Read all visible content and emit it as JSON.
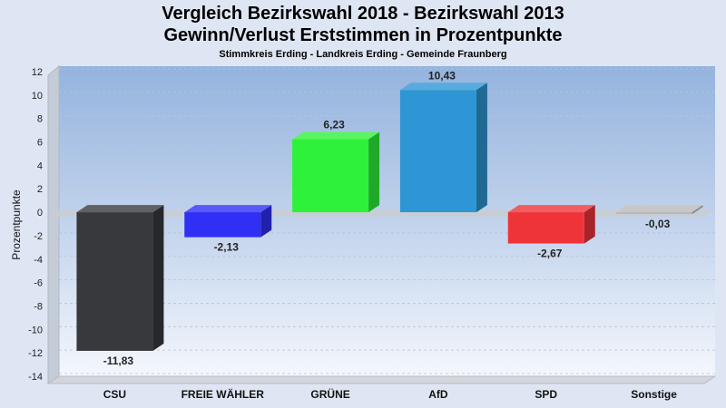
{
  "chart_data": {
    "type": "bar",
    "title": "Vergleich Bezirkswahl 2018 - Bezirkswahl 2013",
    "title2": "Gewinn/Verlust Erststimmen in Prozentpunkte",
    "subtitle": "Stimmkreis Erding - Landkreis Erding - Gemeinde Fraunberg",
    "ylabel": "Prozentpunkte",
    "xlabel": "",
    "ylim": [
      -14,
      12
    ],
    "yticks": [
      12,
      10,
      8,
      6,
      4,
      2,
      0,
      -2,
      -4,
      -6,
      -8,
      -10,
      -12,
      -14
    ],
    "grid": true,
    "categories": [
      "CSU",
      "FREIE WÄHLER",
      "GRÜNE",
      "AfD",
      "SPD",
      "Sonstige"
    ],
    "values": [
      -11.83,
      -2.13,
      6.23,
      10.43,
      -2.67,
      -0.03
    ],
    "data_labels": [
      "-11,83",
      "-2,13",
      "6,23",
      "10,43",
      "-2,67",
      "-0,03"
    ],
    "colors": [
      "#37393d",
      "#2f2ff5",
      "#2ef23a",
      "#2e96d4",
      "#ef3439",
      "#b9b9b9"
    ]
  }
}
